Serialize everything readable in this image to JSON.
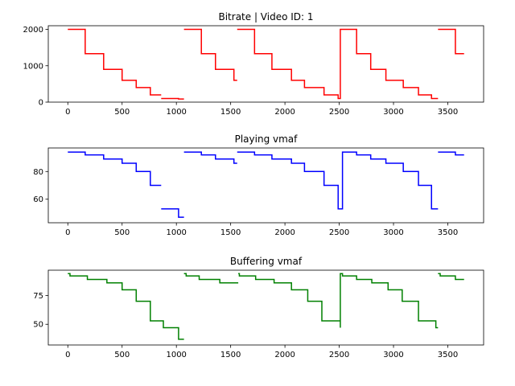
{
  "chart_data": [
    {
      "type": "line",
      "title": "Bitrate | Video ID: 1",
      "xlabel": "",
      "ylabel": "",
      "xlim": [
        -180,
        3830
      ],
      "ylim": [
        0,
        2100
      ],
      "xticks": [
        0,
        500,
        1000,
        1500,
        2000,
        2500,
        3000,
        3500
      ],
      "yticks": [
        0,
        1000,
        2000
      ],
      "grid": false,
      "series": [
        {
          "color": "#ff0000",
          "segments": [
            [
              [
                0,
                2000
              ],
              [
                160,
                2000
              ],
              [
                160,
                1333
              ],
              [
                330,
                1333
              ],
              [
                330,
                900
              ],
              [
                500,
                900
              ],
              [
                500,
                600
              ],
              [
                630,
                600
              ],
              [
                630,
                400
              ],
              [
                760,
                400
              ],
              [
                760,
                200
              ],
              [
                860,
                200
              ]
            ],
            [
              [
                860,
                100
              ],
              [
                1020,
                100
              ],
              [
                1020,
                85
              ],
              [
                1070,
                85
              ]
            ],
            [
              [
                1070,
                2000
              ],
              [
                1230,
                2000
              ],
              [
                1230,
                1333
              ],
              [
                1360,
                1333
              ],
              [
                1360,
                900
              ],
              [
                1530,
                900
              ],
              [
                1530,
                600
              ],
              [
                1560,
                600
              ]
            ],
            [
              [
                1560,
                2000
              ],
              [
                1720,
                2000
              ],
              [
                1720,
                1333
              ],
              [
                1880,
                1333
              ],
              [
                1880,
                900
              ],
              [
                2060,
                900
              ],
              [
                2060,
                600
              ],
              [
                2180,
                600
              ],
              [
                2180,
                400
              ],
              [
                2360,
                400
              ],
              [
                2360,
                200
              ],
              [
                2490,
                200
              ],
              [
                2490,
                100
              ],
              [
                2510,
                100
              ],
              [
                2510,
                2000
              ],
              [
                2660,
                2000
              ],
              [
                2660,
                1333
              ],
              [
                2790,
                1333
              ],
              [
                2790,
                900
              ],
              [
                2930,
                900
              ],
              [
                2930,
                600
              ],
              [
                3090,
                600
              ],
              [
                3090,
                400
              ],
              [
                3230,
                400
              ],
              [
                3230,
                200
              ],
              [
                3350,
                200
              ],
              [
                3350,
                100
              ],
              [
                3410,
                100
              ]
            ],
            [
              [
                3410,
                2000
              ],
              [
                3570,
                2000
              ],
              [
                3570,
                1333
              ],
              [
                3650,
                1333
              ]
            ]
          ]
        }
      ]
    },
    {
      "type": "line",
      "title": "Playing vmaf",
      "xlabel": "",
      "ylabel": "",
      "xlim": [
        -180,
        3830
      ],
      "ylim": [
        43,
        97
      ],
      "xticks": [
        0,
        500,
        1000,
        1500,
        2000,
        2500,
        3000,
        3500
      ],
      "yticks": [
        60,
        80
      ],
      "grid": false,
      "series": [
        {
          "color": "#0000ff",
          "segments": [
            [
              [
                0,
                94
              ],
              [
                160,
                94
              ],
              [
                160,
                92
              ],
              [
                330,
                92
              ],
              [
                330,
                89
              ],
              [
                500,
                89
              ],
              [
                500,
                86
              ],
              [
                630,
                86
              ],
              [
                630,
                80
              ],
              [
                760,
                80
              ],
              [
                760,
                70
              ],
              [
                860,
                70
              ]
            ],
            [
              [
                860,
                53
              ],
              [
                1020,
                53
              ],
              [
                1020,
                47
              ],
              [
                1070,
                47
              ]
            ],
            [
              [
                1070,
                94
              ],
              [
                1230,
                94
              ],
              [
                1230,
                92
              ],
              [
                1360,
                92
              ],
              [
                1360,
                89
              ],
              [
                1530,
                89
              ],
              [
                1530,
                86
              ],
              [
                1560,
                86
              ]
            ],
            [
              [
                1560,
                94
              ],
              [
                1720,
                94
              ],
              [
                1720,
                92
              ],
              [
                1880,
                92
              ],
              [
                1880,
                89
              ],
              [
                2060,
                89
              ],
              [
                2060,
                86
              ],
              [
                2180,
                86
              ],
              [
                2180,
                80
              ],
              [
                2360,
                80
              ],
              [
                2360,
                70
              ],
              [
                2490,
                70
              ],
              [
                2490,
                53
              ],
              [
                2530,
                53
              ],
              [
                2530,
                94
              ],
              [
                2660,
                94
              ],
              [
                2660,
                92
              ],
              [
                2790,
                92
              ],
              [
                2790,
                89
              ],
              [
                2930,
                89
              ],
              [
                2930,
                86
              ],
              [
                3090,
                86
              ],
              [
                3090,
                80
              ],
              [
                3230,
                80
              ],
              [
                3230,
                70
              ],
              [
                3350,
                70
              ],
              [
                3350,
                53
              ],
              [
                3410,
                53
              ]
            ],
            [
              [
                3410,
                94
              ],
              [
                3570,
                94
              ],
              [
                3570,
                92
              ],
              [
                3650,
                92
              ]
            ]
          ]
        }
      ]
    },
    {
      "type": "line",
      "title": "Buffering vmaf",
      "xlabel": "",
      "ylabel": "",
      "xlim": [
        -180,
        3830
      ],
      "ylim": [
        32,
        97
      ],
      "xticks": [
        0,
        500,
        1000,
        1500,
        2000,
        2500,
        3000,
        3500
      ],
      "yticks": [
        50,
        75
      ],
      "grid": false,
      "series": [
        {
          "color": "#008000",
          "segments": [
            [
              [
                0,
                94
              ],
              [
                20,
                94
              ],
              [
                20,
                92
              ],
              [
                180,
                92
              ],
              [
                180,
                89
              ],
              [
                360,
                89
              ],
              [
                360,
                86
              ],
              [
                500,
                86
              ],
              [
                500,
                80
              ],
              [
                630,
                80
              ],
              [
                630,
                70
              ],
              [
                760,
                70
              ],
              [
                760,
                53
              ],
              [
                880,
                53
              ],
              [
                880,
                47
              ],
              [
                1020,
                47
              ],
              [
                1020,
                37
              ],
              [
                1070,
                37
              ]
            ],
            [
              [
                1070,
                94
              ],
              [
                1090,
                94
              ],
              [
                1090,
                92
              ],
              [
                1210,
                92
              ],
              [
                1210,
                89
              ],
              [
                1400,
                89
              ],
              [
                1400,
                86
              ],
              [
                1570,
                86
              ]
            ],
            [
              [
                1570,
                94
              ],
              [
                1580,
                94
              ],
              [
                1580,
                92
              ],
              [
                1730,
                92
              ],
              [
                1730,
                89
              ],
              [
                1900,
                89
              ],
              [
                1900,
                86
              ],
              [
                2060,
                86
              ],
              [
                2060,
                80
              ],
              [
                2210,
                80
              ],
              [
                2210,
                70
              ],
              [
                2340,
                70
              ],
              [
                2340,
                53
              ],
              [
                2510,
                53
              ],
              [
                2510,
                47
              ],
              [
                2510,
                94
              ],
              [
                2530,
                94
              ],
              [
                2530,
                92
              ],
              [
                2660,
                92
              ],
              [
                2660,
                89
              ],
              [
                2800,
                89
              ],
              [
                2800,
                86
              ],
              [
                2950,
                86
              ],
              [
                2950,
                80
              ],
              [
                3080,
                80
              ],
              [
                3080,
                70
              ],
              [
                3230,
                70
              ],
              [
                3230,
                53
              ],
              [
                3390,
                53
              ],
              [
                3390,
                47
              ],
              [
                3410,
                47
              ]
            ],
            [
              [
                3410,
                94
              ],
              [
                3430,
                94
              ],
              [
                3430,
                92
              ],
              [
                3570,
                92
              ],
              [
                3570,
                89
              ],
              [
                3650,
                89
              ]
            ]
          ]
        }
      ]
    }
  ]
}
